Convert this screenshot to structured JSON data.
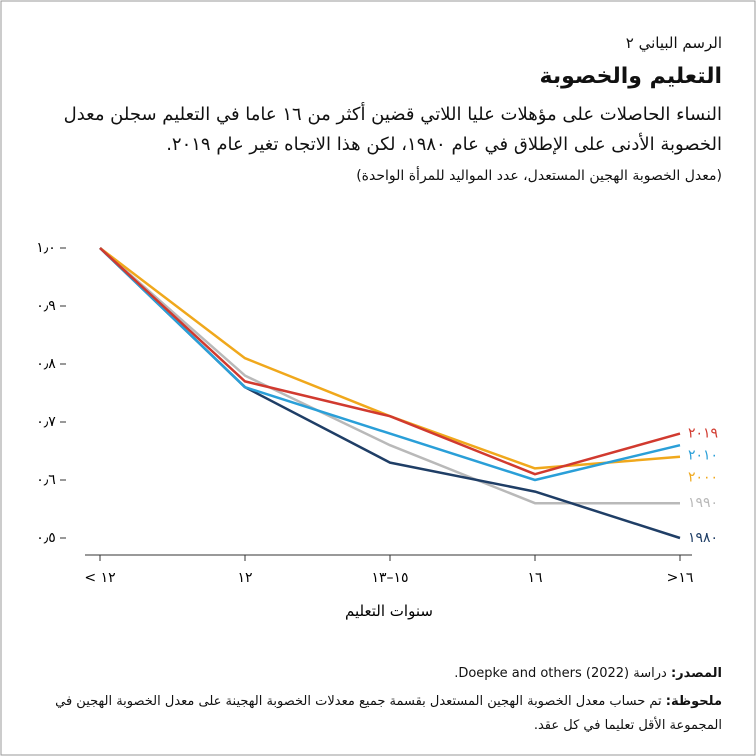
{
  "header": "الرسم البياني ٢",
  "chart_data": {
    "type": "line",
    "title": "التعليم والخصوبة",
    "subtitle": "النساء الحاصلات على مؤهلات عليا اللاتي قضين أكثر من ١٦ عاما في التعليم سجلن معدل الخصوبة الأدنى على الإطلاق في عام ١٩٨٠، لكن هذا الاتجاه تغير عام ٢٠١٩.",
    "unit_note": "(معدل الخصوبة الهجين المستعدل، عدد المواليد للمرأة الواحدة)",
    "x_label": "سنوات التعليم",
    "categories": [
      "< ١٢",
      "١٢",
      "١٥–١٣",
      "١٦",
      ">١٦"
    ],
    "ylim": [
      0.5,
      1.0
    ],
    "yticks": [
      {
        "value": 0.5,
        "label": "٠٫٥"
      },
      {
        "value": 0.6,
        "label": "٠٫٦"
      },
      {
        "value": 0.7,
        "label": "٠٫٧"
      },
      {
        "value": 0.8,
        "label": "٠٫٨"
      },
      {
        "value": 0.9,
        "label": "٠٫٩"
      },
      {
        "value": 1.0,
        "label": "١٫٠"
      }
    ],
    "grid": false,
    "series": [
      {
        "name": "١٩٩٠",
        "color": "#b9b9b9",
        "values": [
          1.0,
          0.78,
          0.66,
          0.56,
          0.56
        ]
      },
      {
        "name": "١٩٨٠",
        "color": "#1f3e66",
        "values": [
          1.0,
          0.76,
          0.63,
          0.58,
          0.5
        ]
      },
      {
        "name": "٢٠٠٠",
        "color": "#f0a81c",
        "values": [
          1.0,
          0.81,
          0.71,
          0.62,
          0.64
        ]
      },
      {
        "name": "٢٠١٠",
        "color": "#2a9fd8",
        "values": [
          1.0,
          0.76,
          0.68,
          0.6,
          0.66
        ]
      },
      {
        "name": "٢٠١٩",
        "color": "#d13a2f",
        "values": [
          1.0,
          0.77,
          0.71,
          0.61,
          0.68
        ]
      }
    ]
  },
  "footer": {
    "source_label": "المصدر:",
    "source": "دراسة Doepke and others (2022).",
    "note_label": "ملحوظة:",
    "note": "تم حساب معدل الخصوبة الهجين المستعدل بقسمة جميع معدلات الخصوبة الهجينة على معدل الخصوبة الهجين في المجموعة الأقل تعليما في كل عقد."
  }
}
